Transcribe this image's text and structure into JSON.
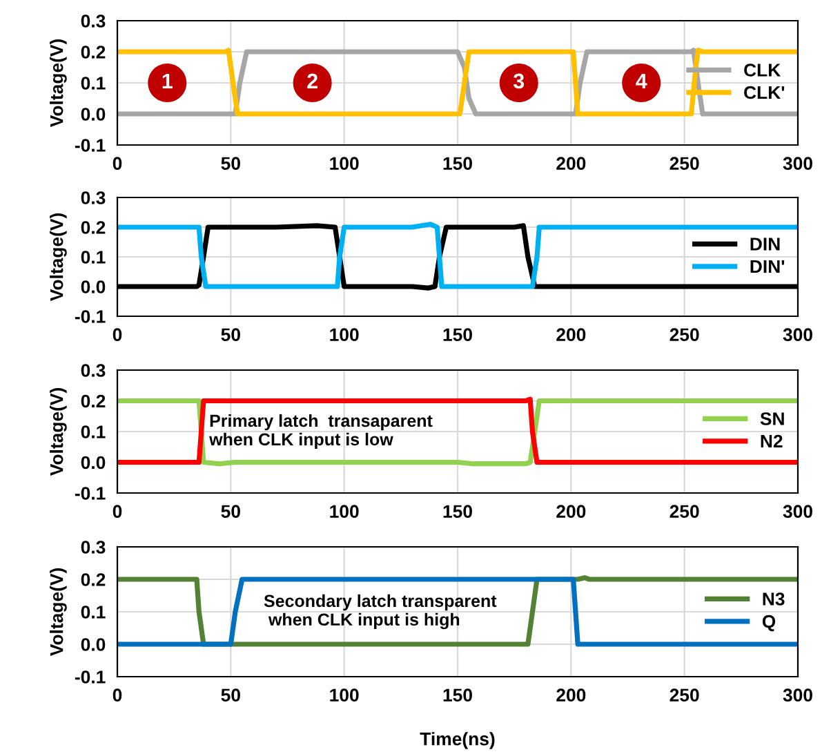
{
  "chart_data": [
    {
      "type": "line",
      "ylabel": "Voltage(V)",
      "xlim": [
        0,
        300
      ],
      "xticks": [
        0,
        50,
        100,
        150,
        200,
        250,
        300
      ],
      "ylim": [
        -0.1,
        0.3
      ],
      "yticks": [
        {
          "value": -0.1,
          "label": "-0.1"
        },
        {
          "value": 0.0,
          "label": "0.0"
        },
        {
          "value": 0.1,
          "label": "0.1"
        },
        {
          "value": 0.2,
          "label": "0.2"
        },
        {
          "value": 0.3,
          "label": "0.3"
        }
      ],
      "grid": true,
      "legend": "right",
      "series": [
        {
          "name": "CLK",
          "color": "#a6a6a6",
          "x": [
            0,
            52,
            54,
            57,
            150,
            153,
            155,
            158,
            202,
            204,
            207,
            253,
            254,
            256,
            258,
            300
          ],
          "values": [
            0,
            0,
            0.1,
            0.2,
            0.2,
            0.15,
            0.05,
            0,
            0,
            0.1,
            0.2,
            0.2,
            0.205,
            0.1,
            0,
            0
          ]
        },
        {
          "name": "CLK'",
          "color": "#ffc000",
          "x": [
            0,
            48,
            49,
            51,
            53,
            151,
            153,
            155,
            201,
            202,
            203,
            253,
            255,
            256,
            258,
            300
          ],
          "values": [
            0.2,
            0.2,
            0.205,
            0.1,
            0,
            0,
            0.1,
            0.2,
            0.2,
            0.1,
            0,
            0,
            0.15,
            0.205,
            0.2,
            0.2
          ]
        }
      ],
      "annotations": [
        {
          "text": "1",
          "x": 22,
          "y": 0.1
        },
        {
          "text": "2",
          "x": 86,
          "y": 0.1
        },
        {
          "text": "3",
          "x": 177,
          "y": 0.1
        },
        {
          "text": "4",
          "x": 231,
          "y": 0.1
        }
      ]
    },
    {
      "type": "line",
      "ylabel": "Voltage(V)",
      "xlim": [
        0,
        300
      ],
      "xticks": [
        0,
        50,
        100,
        150,
        200,
        250,
        300
      ],
      "ylim": [
        -0.1,
        0.3
      ],
      "yticks": [
        {
          "value": -0.1,
          "label": "-0.1"
        },
        {
          "value": 0.0,
          "label": "0.0"
        },
        {
          "value": 0.1,
          "label": "0.1"
        },
        {
          "value": 0.2,
          "label": "0.2"
        },
        {
          "value": 0.3,
          "label": "0.3"
        }
      ],
      "grid": true,
      "legend": "right",
      "series": [
        {
          "name": "DIN",
          "color": "#000000",
          "x": [
            0,
            35,
            36,
            38,
            40,
            70,
            88,
            96,
            98,
            100,
            130,
            137,
            140,
            142,
            145,
            175,
            179,
            181,
            184,
            300
          ],
          "values": [
            0,
            0,
            0.005,
            0.1,
            0.2,
            0.2,
            0.205,
            0.2,
            0.1,
            0,
            0,
            -0.005,
            0,
            0.1,
            0.2,
            0.2,
            0.205,
            0.1,
            0,
            0
          ]
        },
        {
          "name": "DIN'",
          "color": "#00b0f0",
          "x": [
            0,
            36,
            37,
            39,
            97,
            98,
            100,
            130,
            138,
            141,
            142,
            143,
            183,
            185,
            186,
            300
          ],
          "values": [
            0.2,
            0.2,
            0.1,
            0,
            0,
            0.1,
            0.2,
            0.2,
            0.21,
            0.2,
            0.1,
            0,
            0,
            0.1,
            0.2,
            0.2
          ]
        }
      ]
    },
    {
      "type": "line",
      "ylabel": "Voltage(V)",
      "xlim": [
        0,
        300
      ],
      "xticks": [
        0,
        50,
        100,
        150,
        200,
        250,
        300
      ],
      "ylim": [
        -0.1,
        0.3
      ],
      "yticks": [
        {
          "value": -0.1,
          "label": "-0.1"
        },
        {
          "value": 0.0,
          "label": "0.0"
        },
        {
          "value": 0.1,
          "label": "0.1"
        },
        {
          "value": 0.2,
          "label": "0.2"
        },
        {
          "value": 0.3,
          "label": "0.3"
        }
      ],
      "grid": true,
      "legend": "right",
      "series": [
        {
          "name": "SN",
          "color": "#92d050",
          "x": [
            0,
            36,
            37,
            38,
            45,
            52,
            150,
            157,
            180,
            182,
            184,
            186,
            300
          ],
          "values": [
            0.2,
            0.2,
            0.1,
            0,
            -0.005,
            0,
            0,
            -0.005,
            -0.005,
            0,
            0.1,
            0.2,
            0.2
          ]
        },
        {
          "name": "N2",
          "color": "#ff0000",
          "x": [
            0,
            36,
            37,
            38,
            180,
            182,
            183,
            185,
            300
          ],
          "values": [
            0,
            0,
            0.1,
            0.2,
            0.2,
            0.205,
            0.1,
            0,
            0
          ]
        }
      ],
      "annotations": [
        "Primary latch  transaparent\nwhen CLK input is low"
      ]
    },
    {
      "type": "line",
      "ylabel": "Voltage(V)",
      "xlabel": "Time(ns)",
      "xlim": [
        0,
        300
      ],
      "xticks": [
        0,
        50,
        100,
        150,
        200,
        250,
        300
      ],
      "ylim": [
        -0.1,
        0.3
      ],
      "yticks": [
        {
          "value": -0.1,
          "label": "-0.1"
        },
        {
          "value": 0.0,
          "label": "0.0"
        },
        {
          "value": 0.1,
          "label": "0.1"
        },
        {
          "value": 0.2,
          "label": "0.2"
        },
        {
          "value": 0.3,
          "label": "0.3"
        }
      ],
      "grid": true,
      "legend": "right",
      "series": [
        {
          "name": "N3",
          "color": "#548235",
          "x": [
            0,
            35,
            36,
            38,
            181,
            183,
            185,
            203,
            206,
            208,
            300
          ],
          "values": [
            0.2,
            0.2,
            0.1,
            0,
            0,
            0.1,
            0.2,
            0.2,
            0.205,
            0.2,
            0.2
          ]
        },
        {
          "name": "Q",
          "color": "#0070c0",
          "x": [
            0,
            50,
            52,
            55,
            201,
            202,
            203,
            300
          ],
          "values": [
            0,
            0,
            0.1,
            0.2,
            0.2,
            0.1,
            0,
            0
          ]
        }
      ],
      "annotations": [
        "Secondary latch transparent\n when CLK input is high"
      ]
    }
  ]
}
